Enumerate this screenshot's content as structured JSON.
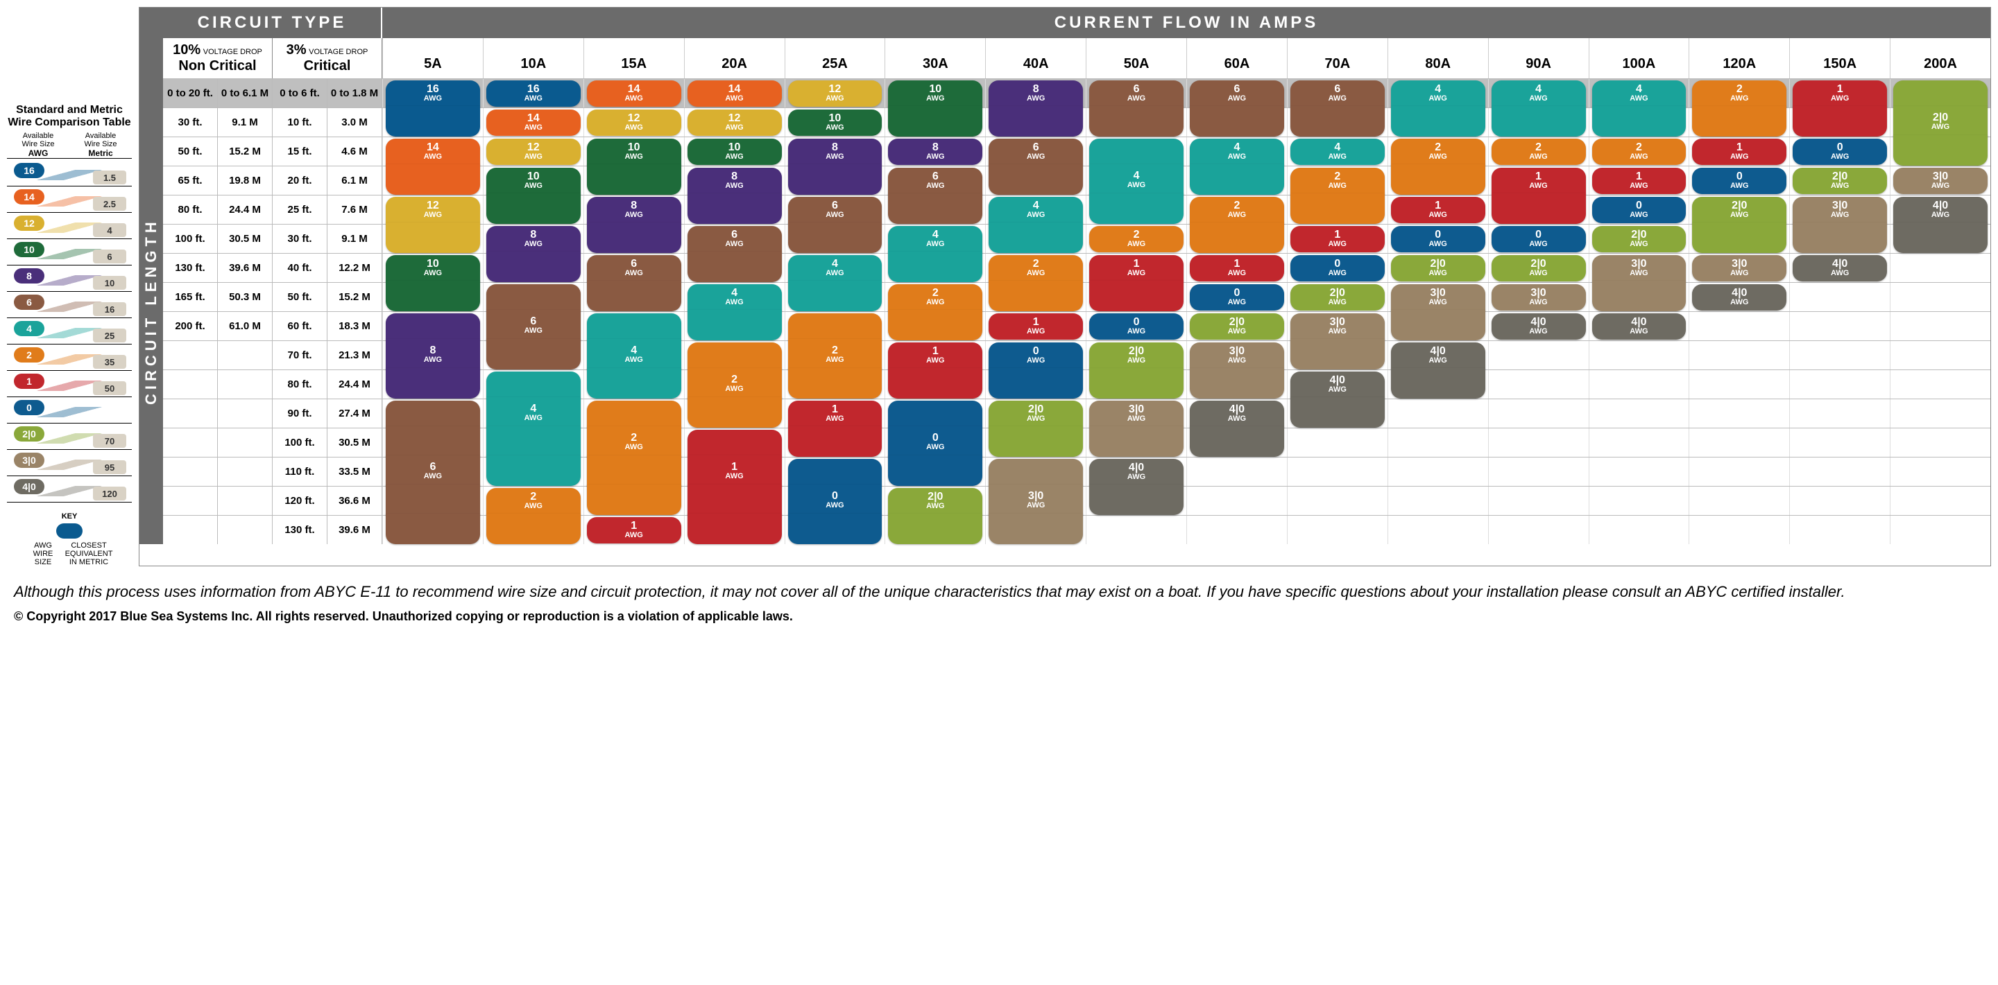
{
  "colors": {
    "16": "#0a5a8f",
    "14": "#e76120",
    "12": "#d9b030",
    "10": "#1e6b3a",
    "8": "#4a2f7a",
    "6": "#8a5a42",
    "4": "#1aa39a",
    "2": "#e07c1b",
    "1": "#c1272d",
    "0": "#0e5b8f",
    "2|0": "#8aa83a",
    "3|0": "#9a8467",
    "4|0": "#6e6b62"
  },
  "legend": {
    "title": "Standard and Metric Wire Comparison Table",
    "col_left_top": "Available",
    "col_left_mid": "Wire Size",
    "col_left_bot": "AWG",
    "col_right_top": "Available",
    "col_right_mid": "Wire Size",
    "col_right_bot": "Metric",
    "rows": [
      {
        "awg": "16",
        "metric": "1.5"
      },
      {
        "awg": "14",
        "metric": "2.5"
      },
      {
        "awg": "12",
        "metric": "4"
      },
      {
        "awg": "10",
        "metric": "6"
      },
      {
        "awg": "8",
        "metric": "10"
      },
      {
        "awg": "6",
        "metric": "16"
      },
      {
        "awg": "4",
        "metric": "25"
      },
      {
        "awg": "2",
        "metric": "35"
      },
      {
        "awg": "1",
        "metric": "50"
      },
      {
        "awg": "0",
        "metric": ""
      },
      {
        "awg": "2|0",
        "metric": "70"
      },
      {
        "awg": "3|0",
        "metric": "95"
      },
      {
        "awg": "4|0",
        "metric": "120"
      }
    ],
    "key_label": "KEY",
    "key_left": "AWG WIRE SIZE",
    "key_right": "CLOSEST EQUIVALENT IN METRIC"
  },
  "header": {
    "circuit_type": "CIRCUIT TYPE",
    "current_flow": "CURRENT FLOW IN AMPS",
    "vd10_top": "10%",
    "vd10_mid": "VOLTAGE DROP",
    "vd10_bot": "Non Critical",
    "vd3_top": "3%",
    "vd3_mid": "VOLTAGE DROP",
    "vd3_bot": "Critical",
    "rot_label": "CIRCUIT LENGTH",
    "amps": [
      "5A",
      "10A",
      "15A",
      "20A",
      "25A",
      "30A",
      "40A",
      "50A",
      "60A",
      "70A",
      "80A",
      "90A",
      "100A",
      "120A",
      "150A",
      "200A"
    ]
  },
  "rows": [
    {
      "shade": true,
      "len": [
        "0 to 20 ft.",
        "0 to 6.1 M",
        "0 to 6 ft.",
        "0 to 1.8 M"
      ],
      "awg": [
        "16",
        "16",
        "14",
        "14",
        "12",
        "10",
        "8",
        "6",
        "6",
        "6",
        "4",
        "4",
        "4",
        "2",
        "1",
        "2|0"
      ]
    },
    {
      "len": [
        "30 ft.",
        "9.1 M",
        "10 ft.",
        "3.0 M"
      ],
      "awg": [
        "16",
        "14",
        "12",
        "12",
        "10",
        "10",
        "8",
        "6",
        "6",
        "6",
        "4",
        "4",
        "4",
        "2",
        "1",
        "2|0"
      ]
    },
    {
      "len": [
        "50 ft.",
        "15.2 M",
        "15 ft.",
        "4.6 M"
      ],
      "awg": [
        "14",
        "12",
        "10",
        "10",
        "8",
        "8",
        "6",
        "4",
        "4",
        "4",
        "2",
        "2",
        "2",
        "1",
        "0",
        "2|0"
      ]
    },
    {
      "len": [
        "65 ft.",
        "19.8 M",
        "20 ft.",
        "6.1 M"
      ],
      "awg": [
        "14",
        "10",
        "10",
        "8",
        "8",
        "6",
        "6",
        "4",
        "4",
        "2",
        "2",
        "1",
        "1",
        "0",
        "2|0",
        "3|0"
      ]
    },
    {
      "len": [
        "80 ft.",
        "24.4 M",
        "25 ft.",
        "7.6 M"
      ],
      "awg": [
        "12",
        "10",
        "8",
        "8",
        "6",
        "6",
        "4",
        "4",
        "2",
        "2",
        "1",
        "1",
        "0",
        "2|0",
        "3|0",
        "4|0"
      ]
    },
    {
      "len": [
        "100 ft.",
        "30.5 M",
        "30 ft.",
        "9.1 M"
      ],
      "awg": [
        "12",
        "8",
        "8",
        "6",
        "6",
        "4",
        "4",
        "2",
        "2",
        "1",
        "0",
        "0",
        "2|0",
        "2|0",
        "3|0",
        "4|0"
      ]
    },
    {
      "len": [
        "130 ft.",
        "39.6 M",
        "40 ft.",
        "12.2 M"
      ],
      "awg": [
        "10",
        "8",
        "6",
        "6",
        "4",
        "4",
        "2",
        "1",
        "1",
        "0",
        "2|0",
        "2|0",
        "3|0",
        "3|0",
        "4|0",
        ""
      ]
    },
    {
      "len": [
        "165 ft.",
        "50.3 M",
        "50 ft.",
        "15.2 M"
      ],
      "awg": [
        "10",
        "6",
        "6",
        "4",
        "4",
        "2",
        "2",
        "1",
        "0",
        "2|0",
        "3|0",
        "3|0",
        "3|0",
        "4|0",
        "",
        ""
      ]
    },
    {
      "len": [
        "200 ft.",
        "61.0 M",
        "60 ft.",
        "18.3 M"
      ],
      "awg": [
        "8",
        "6",
        "4",
        "4",
        "2",
        "2",
        "1",
        "0",
        "2|0",
        "3|0",
        "3|0",
        "4|0",
        "4|0",
        "",
        "",
        ""
      ]
    },
    {
      "len": [
        "",
        "",
        "70 ft.",
        "21.3 M"
      ],
      "awg": [
        "8",
        "6",
        "4",
        "2",
        "2",
        "1",
        "0",
        "2|0",
        "3|0",
        "3|0",
        "4|0",
        "",
        "",
        "",
        "",
        ""
      ]
    },
    {
      "len": [
        "",
        "",
        "80 ft.",
        "24.4 M"
      ],
      "awg": [
        "8",
        "4",
        "4",
        "2",
        "2",
        "1",
        "0",
        "2|0",
        "3|0",
        "4|0",
        "4|0",
        "",
        "",
        "",
        "",
        ""
      ]
    },
    {
      "len": [
        "",
        "",
        "90 ft.",
        "27.4 M"
      ],
      "awg": [
        "6",
        "4",
        "2",
        "2",
        "1",
        "0",
        "2|0",
        "3|0",
        "4|0",
        "4|0",
        "",
        "",
        "",
        "",
        "",
        ""
      ]
    },
    {
      "len": [
        "",
        "",
        "100 ft.",
        "30.5 M"
      ],
      "awg": [
        "6",
        "4",
        "2",
        "1",
        "1",
        "0",
        "2|0",
        "3|0",
        "4|0",
        "",
        "",
        "",
        "",
        "",
        "",
        ""
      ]
    },
    {
      "len": [
        "",
        "",
        "110 ft.",
        "33.5 M"
      ],
      "awg": [
        "6",
        "4",
        "2",
        "1",
        "0",
        "0",
        "3|0",
        "4|0",
        "",
        "",
        "",
        "",
        "",
        "",
        "",
        ""
      ]
    },
    {
      "len": [
        "",
        "",
        "120 ft.",
        "36.6 M"
      ],
      "awg": [
        "6",
        "2",
        "2",
        "1",
        "0",
        "2|0",
        "3|0",
        "4|0",
        "",
        "",
        "",
        "",
        "",
        "",
        "",
        ""
      ]
    },
    {
      "len": [
        "",
        "",
        "130 ft.",
        "39.6 M"
      ],
      "awg": [
        "6",
        "2",
        "1",
        "1",
        "0",
        "2|0",
        "3|0",
        "",
        "",
        "",
        "",
        "",
        "",
        "",
        "",
        ""
      ]
    }
  ],
  "footnote": "Although this process uses information from ABYC E-11 to recommend wire size and circuit protection, it may not cover all of the unique characteristics that may exist on a boat. If you have specific questions about your installation please consult an ABYC certified installer.",
  "copyright": "© Copyright 2017 Blue Sea Systems Inc. All rights reserved. Unauthorized copying or reproduction is a violation of applicable laws."
}
